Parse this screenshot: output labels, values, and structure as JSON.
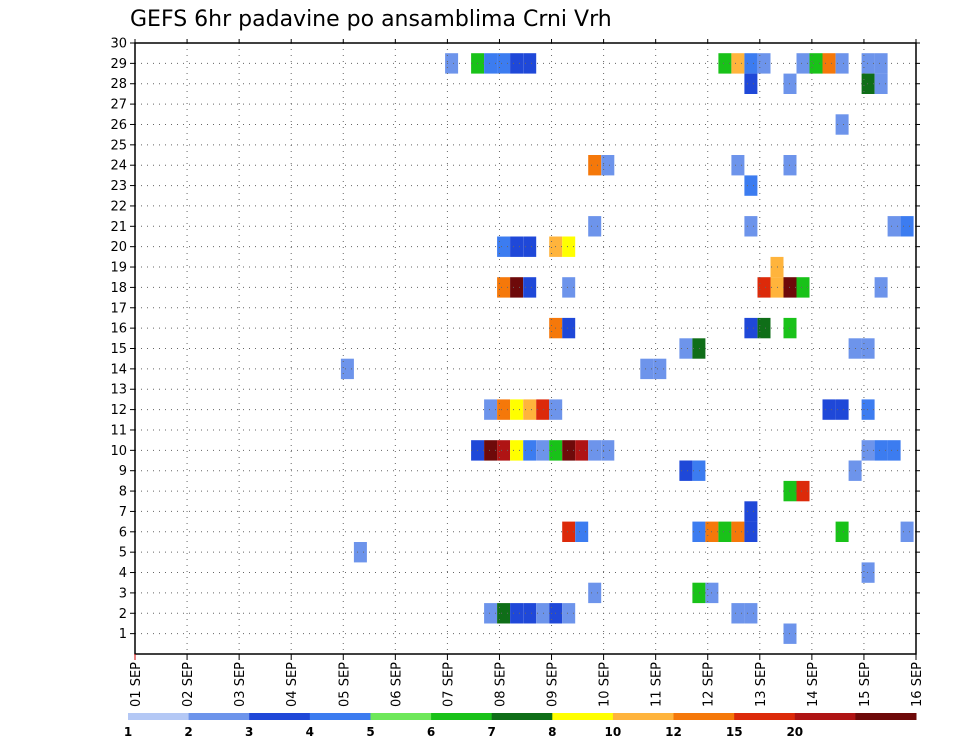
{
  "chart_data": {
    "type": "heatmap",
    "title": "GEFS 6hr padavine po ansamblima Crni Vrh",
    "xlabel": "",
    "ylabel": "",
    "x_ticks": [
      "01 SEP",
      "02 SEP",
      "03 SEP",
      "04 SEP",
      "05 SEP",
      "06 SEP",
      "07 SEP",
      "08 SEP",
      "09 SEP",
      "10 SEP",
      "11 SEP",
      "12 SEP",
      "13 SEP",
      "14 SEP",
      "15 SEP",
      "16 SEP"
    ],
    "y_range": [
      0,
      30
    ],
    "y_ticks": [
      1,
      2,
      3,
      4,
      5,
      6,
      7,
      8,
      9,
      10,
      11,
      12,
      13,
      14,
      15,
      16,
      17,
      18,
      19,
      20,
      21,
      22,
      23,
      24,
      25,
      26,
      27,
      28,
      29,
      30
    ],
    "grid": true,
    "colorbar": {
      "labels": [
        "1",
        "2",
        "3",
        "4",
        "5",
        "6",
        "7",
        "8",
        "10",
        "12",
        "15",
        "20"
      ],
      "colors": [
        "#b4c8f5",
        "#6d94eb",
        "#1f48d8",
        "#3c7cf0",
        "#6ee85a",
        "#19c219",
        "#0f6e18",
        "#ffff00",
        "#ffb43c",
        "#f5780a",
        "#dc2a0a",
        "#af1414",
        "#6e0a0a"
      ]
    },
    "cells": [
      [
        7.08,
        29,
        1
      ],
      [
        7.58,
        29,
        5
      ],
      [
        7.83,
        29,
        3
      ],
      [
        8.08,
        29,
        3
      ],
      [
        8.33,
        29,
        2
      ],
      [
        8.58,
        29,
        2
      ],
      [
        12.33,
        29,
        5
      ],
      [
        12.58,
        29,
        8
      ],
      [
        12.83,
        29,
        3
      ],
      [
        13.08,
        29,
        1
      ],
      [
        13.83,
        29,
        1
      ],
      [
        14.08,
        29,
        5
      ],
      [
        14.33,
        29,
        10
      ],
      [
        14.58,
        29,
        1
      ],
      [
        15.08,
        29,
        1
      ],
      [
        15.33,
        29,
        1
      ],
      [
        12.83,
        28,
        2
      ],
      [
        13.58,
        28,
        1
      ],
      [
        15.08,
        28,
        6
      ],
      [
        15.33,
        28,
        1
      ],
      [
        14.58,
        26,
        1
      ],
      [
        9.83,
        24,
        10
      ],
      [
        10.08,
        24,
        1
      ],
      [
        12.58,
        24,
        1
      ],
      [
        13.58,
        24,
        1
      ],
      [
        12.83,
        23,
        3
      ],
      [
        9.83,
        21,
        1
      ],
      [
        12.83,
        21,
        1
      ],
      [
        15.58,
        21,
        1
      ],
      [
        15.83,
        21,
        3
      ],
      [
        8.08,
        20,
        3
      ],
      [
        8.33,
        20,
        2
      ],
      [
        8.58,
        20,
        2
      ],
      [
        9.08,
        20,
        8
      ],
      [
        9.33,
        20,
        7
      ],
      [
        13.33,
        19,
        8
      ],
      [
        8.08,
        18,
        10
      ],
      [
        8.33,
        18,
        20
      ],
      [
        8.58,
        18,
        2
      ],
      [
        9.33,
        18,
        1
      ],
      [
        13.08,
        18,
        12
      ],
      [
        13.33,
        18,
        8
      ],
      [
        13.58,
        18,
        20
      ],
      [
        13.83,
        18,
        5
      ],
      [
        15.33,
        18,
        1
      ],
      [
        9.08,
        16,
        10
      ],
      [
        9.33,
        16,
        2
      ],
      [
        12.83,
        16,
        2
      ],
      [
        13.08,
        16,
        6
      ],
      [
        13.58,
        16,
        5
      ],
      [
        11.58,
        15,
        1
      ],
      [
        11.83,
        15,
        6
      ],
      [
        15.08,
        15,
        1
      ],
      [
        14.83,
        15,
        1
      ],
      [
        5.08,
        14,
        1
      ],
      [
        10.83,
        14,
        1
      ],
      [
        11.08,
        14,
        1
      ],
      [
        7.83,
        12,
        1
      ],
      [
        8.08,
        12,
        10
      ],
      [
        8.33,
        12,
        7
      ],
      [
        8.58,
        12,
        8
      ],
      [
        8.83,
        12,
        12
      ],
      [
        9.08,
        12,
        1
      ],
      [
        14.33,
        12,
        2
      ],
      [
        14.58,
        12,
        2
      ],
      [
        15.08,
        12,
        3
      ],
      [
        7.58,
        10,
        2
      ],
      [
        7.83,
        10,
        25
      ],
      [
        8.08,
        10,
        15
      ],
      [
        8.33,
        10,
        7
      ],
      [
        8.58,
        10,
        3
      ],
      [
        8.83,
        10,
        1
      ],
      [
        9.08,
        10,
        5
      ],
      [
        9.33,
        10,
        20
      ],
      [
        9.58,
        10,
        15
      ],
      [
        9.83,
        10,
        1
      ],
      [
        10.08,
        10,
        1
      ],
      [
        15.08,
        10,
        1
      ],
      [
        15.33,
        10,
        3
      ],
      [
        15.58,
        10,
        3
      ],
      [
        11.58,
        9,
        2
      ],
      [
        11.83,
        9,
        3
      ],
      [
        14.83,
        9,
        1
      ],
      [
        13.58,
        8,
        5
      ],
      [
        13.83,
        8,
        12
      ],
      [
        12.83,
        7,
        2
      ],
      [
        9.33,
        6,
        12
      ],
      [
        9.58,
        6,
        3
      ],
      [
        11.83,
        6,
        3
      ],
      [
        12.08,
        6,
        10
      ],
      [
        12.33,
        6,
        5
      ],
      [
        12.58,
        6,
        10
      ],
      [
        12.83,
        6,
        2
      ],
      [
        14.58,
        6,
        5
      ],
      [
        15.83,
        6,
        1
      ],
      [
        5.33,
        5,
        1
      ],
      [
        15.08,
        4,
        1
      ],
      [
        9.83,
        3,
        1
      ],
      [
        11.83,
        3,
        5
      ],
      [
        12.08,
        3,
        1
      ],
      [
        7.83,
        2,
        1
      ],
      [
        8.08,
        2,
        6
      ],
      [
        8.33,
        2,
        2
      ],
      [
        8.58,
        2,
        2
      ],
      [
        8.83,
        2,
        1
      ],
      [
        9.08,
        2,
        2
      ],
      [
        9.33,
        2,
        1
      ],
      [
        12.58,
        2,
        1
      ],
      [
        12.83,
        2,
        1
      ],
      [
        13.58,
        1,
        1
      ]
    ]
  }
}
